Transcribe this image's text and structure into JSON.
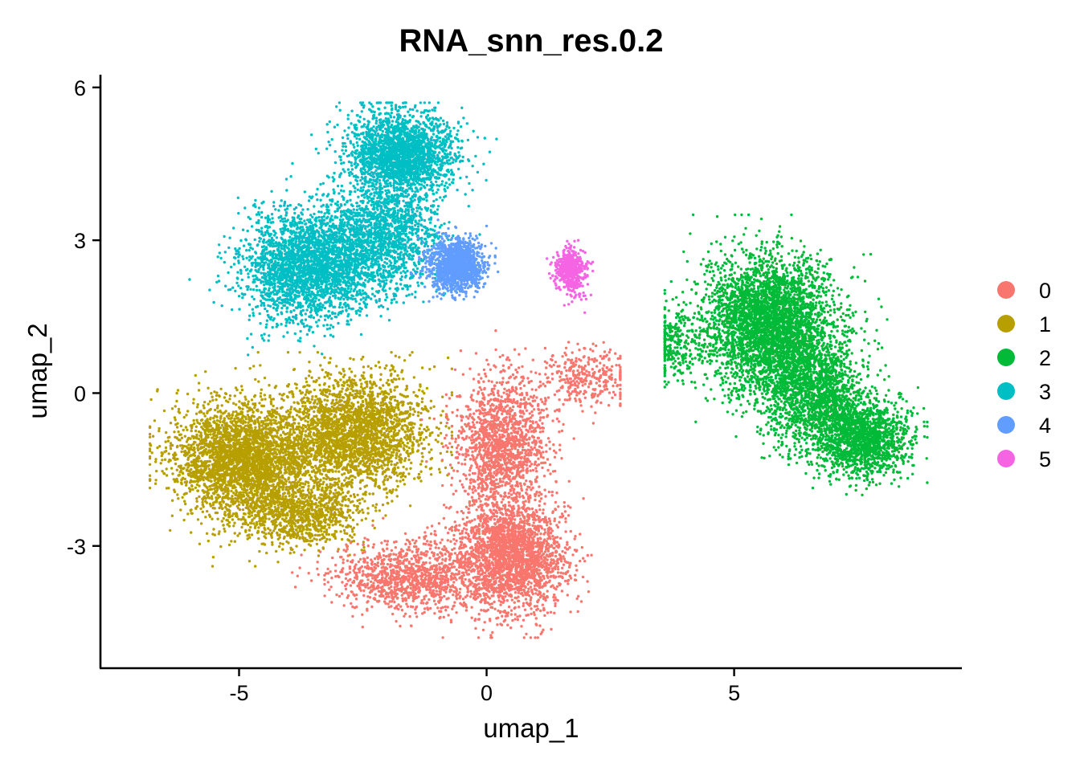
{
  "chart_data": {
    "type": "scatter",
    "title": "RNA_snn_res.0.2",
    "xlabel": "umap_1",
    "ylabel": "umap_2",
    "xlim": [
      -7.8,
      9.6
    ],
    "ylim": [
      -5.4,
      6.25
    ],
    "x_ticks": [
      -5,
      0,
      5
    ],
    "x_tick_labels": [
      "-5",
      "0",
      "5"
    ],
    "y_ticks": [
      -3,
      0,
      3,
      6
    ],
    "y_tick_labels": [
      "-3",
      "0",
      "3",
      "6"
    ],
    "grid": false,
    "legend_position": "right",
    "series": [
      {
        "name": "0",
        "color": "#F8766D",
        "approx_centroid": [
          0.3,
          -2.8
        ],
        "extent": {
          "x": [
            -4.8,
            2.7
          ],
          "y": [
            -4.8,
            1.4
          ]
        },
        "clusters": [
          {
            "center": [
              0.5,
              -3.2
            ],
            "spread": [
              0.9,
              0.9
            ],
            "count": 2400
          },
          {
            "center": [
              0.3,
              -1.0
            ],
            "spread": [
              0.75,
              1.1
            ],
            "count": 1500
          },
          {
            "center": [
              -1.6,
              -3.6
            ],
            "spread": [
              1.2,
              0.55
            ],
            "count": 1100
          },
          {
            "center": [
              2.0,
              0.3
            ],
            "spread": [
              0.8,
              0.45
            ],
            "count": 350
          }
        ]
      },
      {
        "name": "1",
        "color": "#B79F00",
        "approx_centroid": [
          -3.8,
          -1.3
        ],
        "extent": {
          "x": [
            -6.8,
            -0.7
          ],
          "y": [
            -3.4,
            0.8
          ]
        },
        "clusters": [
          {
            "center": [
              -4.9,
              -1.3
            ],
            "spread": [
              1.15,
              0.9
            ],
            "count": 3200
          },
          {
            "center": [
              -2.6,
              -0.8
            ],
            "spread": [
              1.15,
              0.95
            ],
            "count": 2500
          },
          {
            "center": [
              -3.8,
              -2.4
            ],
            "spread": [
              1.0,
              0.5
            ],
            "count": 900
          }
        ]
      },
      {
        "name": "2",
        "color": "#00BA38",
        "approx_centroid": [
          6.2,
          0.7
        ],
        "extent": {
          "x": [
            3.6,
            8.9
          ],
          "y": [
            -2.2,
            3.5
          ]
        },
        "clusters": [
          {
            "center": [
              5.7,
              1.4
            ],
            "spread": [
              1.05,
              1.05
            ],
            "count": 3600
          },
          {
            "center": [
              7.6,
              -0.9
            ],
            "spread": [
              0.75,
              0.6
            ],
            "count": 1500
          },
          {
            "center": [
              6.6,
              0.0
            ],
            "spread": [
              0.9,
              0.9
            ],
            "count": 1700
          },
          {
            "center": [
              3.8,
              1.0
            ],
            "spread": [
              0.45,
              0.55
            ],
            "count": 250
          }
        ]
      },
      {
        "name": "3",
        "color": "#00BFC4",
        "approx_centroid": [
          -2.4,
          3.2
        ],
        "extent": {
          "x": [
            -6.0,
            0.2
          ],
          "y": [
            0.6,
            5.7
          ]
        },
        "clusters": [
          {
            "center": [
              -1.7,
              4.7
            ],
            "spread": [
              0.85,
              0.65
            ],
            "count": 2200
          },
          {
            "center": [
              -3.6,
              2.5
            ],
            "spread": [
              1.05,
              0.85
            ],
            "count": 2700
          },
          {
            "center": [
              -2.1,
              3.1
            ],
            "spread": [
              0.9,
              0.9
            ],
            "count": 1500
          }
        ]
      },
      {
        "name": "4",
        "color": "#619CFF",
        "approx_centroid": [
          -0.6,
          2.5
        ],
        "extent": {
          "x": [
            -1.6,
            0.5
          ],
          "y": [
            1.3,
            3.4
          ]
        },
        "clusters": [
          {
            "center": [
              -0.6,
              2.5
            ],
            "spread": [
              0.45,
              0.42
            ],
            "count": 1300
          }
        ]
      },
      {
        "name": "5",
        "color": "#F564E3",
        "approx_centroid": [
          1.7,
          2.3
        ],
        "extent": {
          "x": [
            1.0,
            2.5
          ],
          "y": [
            1.1,
            3.0
          ]
        },
        "clusters": [
          {
            "center": [
              1.7,
              2.4
            ],
            "spread": [
              0.25,
              0.35
            ],
            "count": 520
          }
        ]
      }
    ]
  }
}
